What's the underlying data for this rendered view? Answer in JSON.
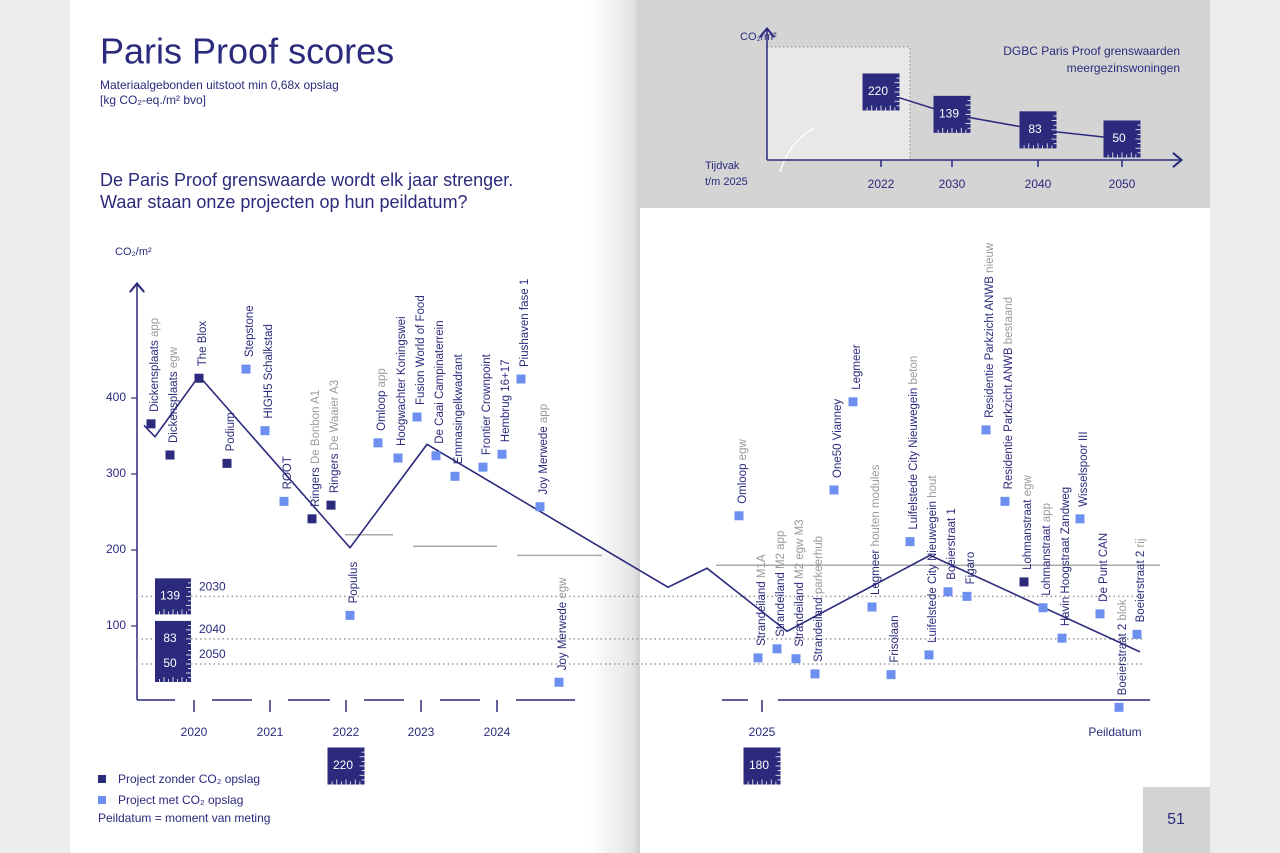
{
  "header": {
    "title": "Paris Proof scores",
    "subtitle_line1": "Materiaalgebonden uitstoot min 0,68x opslag",
    "subtitle_line2": "[kg CO₂-eq./m² bvo]",
    "question_line1": "De Paris Proof grenswaarde wordt elk jaar strenger.",
    "question_line2": "Waar staan onze projecten op hun peildatum?"
  },
  "main_chart": {
    "y_axis_label": "CO₂/m²",
    "yticks": [
      100,
      200,
      300,
      400
    ],
    "years": [
      "2020",
      "2021",
      "2022",
      "2023",
      "2024",
      "2025"
    ],
    "x_axis_end_label": "Peildatum",
    "targets": [
      {
        "value": 139,
        "year": "2030"
      },
      {
        "value": 83,
        "year": "2040"
      },
      {
        "value": 50,
        "year": "2050"
      }
    ],
    "year_limits": [
      {
        "value": 220
      },
      {
        "value": 205
      },
      {
        "value": 193
      },
      {
        "value": 180
      }
    ],
    "limit_line": [
      364,
      349,
      429,
      203,
      339,
      151,
      176,
      93,
      193,
      66
    ],
    "projects": [
      {
        "name": "Dickensplaats",
        "variant": "app",
        "opslag": false,
        "value": 366
      },
      {
        "name": "Dickensplaats",
        "variant": "egw",
        "opslag": false,
        "value": 325
      },
      {
        "name": "The Blox",
        "opslag": false,
        "value": 426
      },
      {
        "name": "Podium",
        "opslag": false,
        "value": 314
      },
      {
        "name": "Stepstone",
        "opslag": true,
        "value": 438
      },
      {
        "name": "HIGH5 Schalkstad",
        "opslag": true,
        "value": 357
      },
      {
        "name": "ROOT",
        "opslag": true,
        "value": 264
      },
      {
        "name": "Ringers",
        "variant": "De Bonbon A1",
        "opslag": false,
        "value": 241
      },
      {
        "name": "Ringers",
        "variant": "De Waaier A3",
        "opslag": false,
        "value": 259
      },
      {
        "name": "Populus",
        "opslag": true,
        "value": 114
      },
      {
        "name": "Omloop",
        "variant": "app",
        "opslag": true,
        "value": 341
      },
      {
        "name": "Hoogwachter Koningswei",
        "opslag": true,
        "value": 321
      },
      {
        "name": "Fusion World of Food",
        "opslag": true,
        "value": 375
      },
      {
        "name": "De Caai Campinaterrein",
        "opslag": true,
        "value": 324
      },
      {
        "name": "Emmasingelkwadrant",
        "opslag": true,
        "value": 297
      },
      {
        "name": "Frontier Crownpoint",
        "opslag": true,
        "value": 309
      },
      {
        "name": "Hembrug 16+17",
        "opslag": true,
        "value": 326
      },
      {
        "name": "Piushaven fase 1",
        "opslag": true,
        "value": 425
      },
      {
        "name": "Joy Merwede",
        "variant": "app",
        "opslag": true,
        "value": 257
      },
      {
        "name": "Joy Merwede",
        "variant": "egw",
        "opslag": true,
        "value": 26
      },
      {
        "name": "Omloop",
        "variant": "egw",
        "opslag": true,
        "value": 245
      },
      {
        "name": "Strandeiland",
        "variant": "M1A",
        "opslag": true,
        "value": 58
      },
      {
        "name": "Strandeiland",
        "variant": "M2 app",
        "opslag": true,
        "value": 70
      },
      {
        "name": "Strandeiland",
        "variant": "M2 egw M3",
        "opslag": true,
        "value": 57
      },
      {
        "name": "Strandeiland",
        "variant": "parkeerhub",
        "opslag": true,
        "value": 37
      },
      {
        "name": "One50 Vianney",
        "opslag": true,
        "value": 279
      },
      {
        "name": "Legmeer",
        "opslag": true,
        "value": 395
      },
      {
        "name": "Legmeer",
        "variant": "houten modules",
        "opslag": true,
        "value": 125
      },
      {
        "name": "Frisolaan",
        "opslag": true,
        "value": 36
      },
      {
        "name": "Luifelstede City Nieuwegein",
        "variant": "beton",
        "opslag": true,
        "value": 211
      },
      {
        "name": "Luifelstede City Nieuwegein",
        "variant": "hout",
        "opslag": true,
        "value": 62
      },
      {
        "name": "Boeierstraat 1",
        "opslag": true,
        "value": 145
      },
      {
        "name": "Figaro",
        "opslag": true,
        "value": 139
      },
      {
        "name": "Residentie Parkzicht ANWB",
        "variant": "nieuw",
        "opslag": true,
        "value": 358
      },
      {
        "name": "Residentie Parkzicht ANWB",
        "variant": "bestaand",
        "opslag": true,
        "value": 264
      },
      {
        "name": "Lohmanstraat",
        "variant": "egw",
        "opslag": false,
        "value": 158
      },
      {
        "name": "Lohmanstraat",
        "variant": "app",
        "opslag": true,
        "value": 124
      },
      {
        "name": "Havin Hoogstraat Zandweg",
        "opslag": true,
        "value": 84
      },
      {
        "name": "Wisselspoor III",
        "opslag": true,
        "value": 241
      },
      {
        "name": "De Punt CAN",
        "opslag": true,
        "value": 116
      },
      {
        "name": "Boeierstraat 2",
        "variant": "blok",
        "opslag": true,
        "value": -7
      },
      {
        "name": "Boeierstraat 2",
        "variant": "rij",
        "opslag": true,
        "value": 89
      }
    ]
  },
  "legend": {
    "without": "Project zonder CO₂ opslag",
    "with": "Project met CO₂ opslag",
    "note": "Peildatum = moment van meting"
  },
  "inset": {
    "y_axis_label": "CO₂/m²",
    "title_line1": "DGBC Paris Proof grenswaarden",
    "title_line2": "meergezinswoningen",
    "period_line1": "Tijdvak",
    "period_line2": "t/m 2025",
    "points": [
      {
        "year": "2022",
        "value": 220
      },
      {
        "year": "2030",
        "value": 139
      },
      {
        "year": "2040",
        "value": 83
      },
      {
        "year": "2050",
        "value": 50
      }
    ]
  },
  "page_number": "51"
}
